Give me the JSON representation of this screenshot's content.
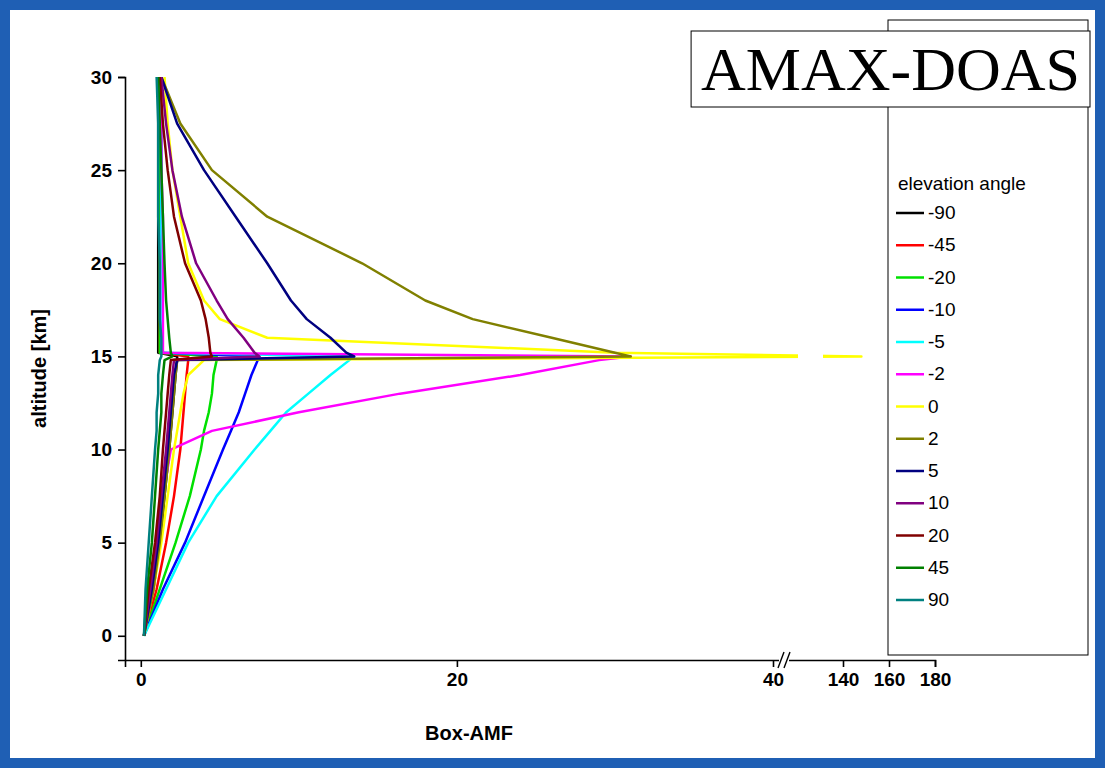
{
  "chart_data": {
    "type": "line",
    "title": "AMAX-DOAS",
    "legend_title": "elevation angle",
    "x_label": "Box-AMF",
    "y_label": "altitude [km]",
    "orientation": "horizontal",
    "legend": "right",
    "y": [
      0,
      2.5,
      5,
      7.5,
      10,
      11,
      12,
      13,
      14,
      14.8,
      15,
      15.2,
      16,
      17,
      18,
      20,
      22.5,
      25,
      27.5,
      30
    ],
    "xlim": [
      -1,
      180
    ],
    "xbreak": [
      40,
      140
    ],
    "xticks": [
      0,
      20,
      40,
      140,
      160,
      180
    ],
    "ylim": [
      -1.3,
      30
    ],
    "yticks": [
      0,
      5,
      10,
      15,
      20,
      25,
      30
    ],
    "series": [
      {
        "name": "-90",
        "color": "#000000",
        "values": [
          0.2,
          0.8,
          1.2,
          1.5,
          1.8,
          1.9,
          2.0,
          2.1,
          2.2,
          2.3,
          2.3,
          1.1,
          1.1,
          1.1,
          1.1,
          1.1,
          1.1,
          1.1,
          1.1,
          1.1
        ]
      },
      {
        "name": "-45",
        "color": "#ff0000",
        "values": [
          0.2,
          1.0,
          1.6,
          2.1,
          2.5,
          2.6,
          2.7,
          2.8,
          2.9,
          3.0,
          3.0,
          1.2,
          1.2,
          1.2,
          1.2,
          1.2,
          1.2,
          1.2,
          1.2,
          1.2
        ]
      },
      {
        "name": "-20",
        "color": "#00e000",
        "values": [
          0.2,
          1.2,
          2.2,
          3.1,
          3.8,
          4.0,
          4.3,
          4.5,
          4.6,
          4.8,
          4.8,
          1.2,
          1.2,
          1.2,
          1.2,
          1.2,
          1.2,
          1.2,
          1.2,
          1.2
        ]
      },
      {
        "name": "-10",
        "color": "#0000ff",
        "values": [
          0.2,
          1.4,
          2.8,
          4.0,
          5.2,
          5.7,
          6.2,
          6.6,
          7.0,
          7.4,
          7.5,
          1.3,
          1.3,
          1.3,
          1.3,
          1.3,
          1.3,
          1.3,
          1.3,
          1.2
        ]
      },
      {
        "name": "-5",
        "color": "#00ffff",
        "values": [
          0.2,
          1.6,
          3.0,
          4.8,
          7.2,
          8.2,
          9.2,
          10.6,
          12.0,
          13.2,
          13.5,
          1.3,
          1.3,
          1.3,
          1.3,
          1.3,
          1.3,
          1.3,
          1.3,
          1.2
        ]
      },
      {
        "name": "-2",
        "color": "#ff00ff",
        "values": [
          0.2,
          0.6,
          1.0,
          1.4,
          1.9,
          4.5,
          10,
          16.4,
          24,
          29,
          31,
          1.4,
          1.4,
          1.4,
          1.4,
          1.4,
          1.4,
          1.3,
          1.3,
          1.3
        ]
      },
      {
        "name": "0",
        "color": "#ffff00",
        "values": [
          0.2,
          0.8,
          1.3,
          1.7,
          2.1,
          2.3,
          2.5,
          2.7,
          3.0,
          4.0,
          148,
          30,
          8,
          5,
          4,
          3,
          2.5,
          2,
          1.7,
          1.5
        ]
      },
      {
        "name": "2",
        "color": "#808000",
        "values": [
          0.2,
          0.8,
          1.2,
          1.5,
          1.8,
          1.9,
          2.0,
          2.1,
          2.2,
          2.3,
          31,
          30,
          26,
          21,
          18,
          14,
          8,
          4.5,
          2.5,
          1.3
        ]
      },
      {
        "name": "5",
        "color": "#000080",
        "values": [
          0.2,
          0.7,
          1.1,
          1.4,
          1.7,
          1.8,
          1.9,
          2.0,
          2.1,
          2.3,
          13.5,
          13,
          12,
          10.5,
          9.5,
          8,
          6,
          4,
          2.3,
          1.3
        ]
      },
      {
        "name": "10",
        "color": "#800080",
        "values": [
          0.2,
          0.6,
          1.0,
          1.3,
          1.6,
          1.7,
          1.8,
          1.9,
          2.0,
          2.1,
          7.5,
          7.2,
          6.5,
          5.5,
          4.8,
          3.5,
          2.6,
          2.0,
          1.6,
          1.3
        ]
      },
      {
        "name": "20",
        "color": "#800000",
        "values": [
          0.2,
          0.5,
          0.9,
          1.2,
          1.4,
          1.5,
          1.6,
          1.7,
          1.8,
          1.9,
          4.5,
          4.4,
          4.3,
          4.1,
          3.8,
          2.8,
          2.1,
          1.7,
          1.4,
          1.2
        ]
      },
      {
        "name": "45",
        "color": "#008000",
        "values": [
          0.2,
          0.4,
          0.7,
          0.9,
          1.1,
          1.2,
          1.3,
          1.3,
          1.4,
          1.5,
          2.0,
          1.9,
          1.8,
          1.7,
          1.6,
          1.5,
          1.4,
          1.3,
          1.2,
          1.1
        ]
      },
      {
        "name": "90",
        "color": "#008080",
        "values": [
          0.2,
          0.3,
          0.5,
          0.7,
          0.9,
          1.0,
          1.0,
          1.1,
          1.1,
          1.2,
          1.3,
          1.3,
          1.3,
          1.2,
          1.2,
          1.2,
          1.1,
          1.1,
          1.1,
          1.0
        ]
      }
    ]
  }
}
